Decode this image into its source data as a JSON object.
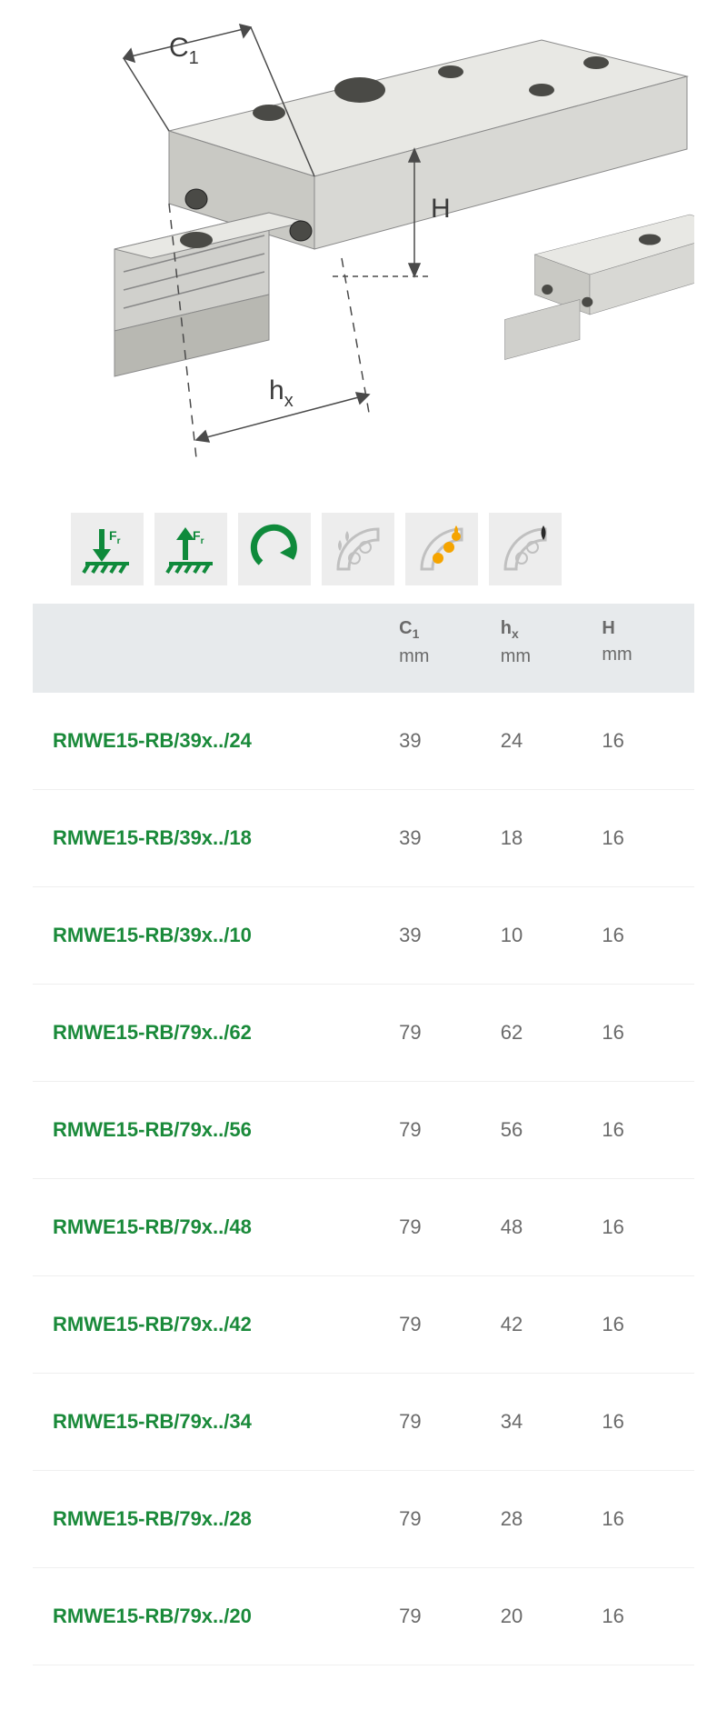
{
  "diagram": {
    "labels": {
      "c1": "C",
      "c1_sub": "1",
      "H": "H",
      "hx": "h",
      "hx_sub": "x"
    },
    "line_color": "#4a4a4a",
    "metal_light": "#e8e8e4",
    "metal_mid": "#c9c9c4",
    "metal_dark": "#a8a8a2",
    "hole_dark": "#4a4a46"
  },
  "icons": {
    "bg": "#ededed",
    "green": "#0f8a3b",
    "grey": "#c0c0c0",
    "yellow": "#f5a400",
    "black": "#2a2a2a",
    "fr_label": "F",
    "fr_sub": "r"
  },
  "table": {
    "header_bg": "#e7eaec",
    "text_color": "#6a6a6a",
    "link_color": "#1a8a3a",
    "columns": [
      {
        "label": "",
        "unit": ""
      },
      {
        "label_html": "C<sub>1</sub>",
        "unit": "mm"
      },
      {
        "label_html": "h<sub>x</sub>",
        "unit": "mm"
      },
      {
        "label_html": "H",
        "unit": "mm"
      }
    ],
    "rows": [
      {
        "name": "RMWE15-RB/39x../24",
        "c1": "39",
        "hx": "24",
        "H": "16"
      },
      {
        "name": "RMWE15-RB/39x../18",
        "c1": "39",
        "hx": "18",
        "H": "16"
      },
      {
        "name": "RMWE15-RB/39x../10",
        "c1": "39",
        "hx": "10",
        "H": "16"
      },
      {
        "name": "RMWE15-RB/79x../62",
        "c1": "79",
        "hx": "62",
        "H": "16"
      },
      {
        "name": "RMWE15-RB/79x../56",
        "c1": "79",
        "hx": "56",
        "H": "16"
      },
      {
        "name": "RMWE15-RB/79x../48",
        "c1": "79",
        "hx": "48",
        "H": "16"
      },
      {
        "name": "RMWE15-RB/79x../42",
        "c1": "79",
        "hx": "42",
        "H": "16"
      },
      {
        "name": "RMWE15-RB/79x../34",
        "c1": "79",
        "hx": "34",
        "H": "16"
      },
      {
        "name": "RMWE15-RB/79x../28",
        "c1": "79",
        "hx": "28",
        "H": "16"
      },
      {
        "name": "RMWE15-RB/79x../20",
        "c1": "79",
        "hx": "20",
        "H": "16"
      }
    ]
  }
}
